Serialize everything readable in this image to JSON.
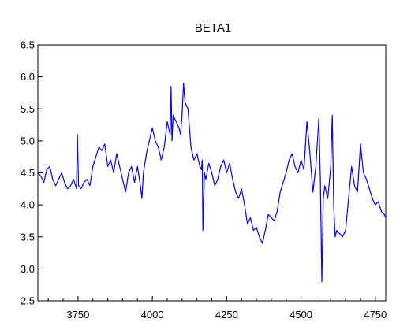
{
  "chart_data": {
    "type": "line",
    "title": "BETA1",
    "xlabel": "",
    "ylabel": "",
    "xlim": [
      3615,
      4785
    ],
    "ylim": [
      2.5,
      6.5
    ],
    "x_ticks": [
      3750,
      4000,
      4250,
      4500,
      4750
    ],
    "y_ticks": [
      2.5,
      3.0,
      3.5,
      4.0,
      4.5,
      5.0,
      5.5,
      6.0,
      6.5
    ],
    "y_tick_labels": [
      "2.5",
      "3.0",
      "3.5",
      "4.0",
      "4.5",
      "5.0",
      "5.5",
      "6.0",
      "6.5"
    ],
    "grid": false,
    "line_color": "#0000ff",
    "series": [
      {
        "x": [
          3615,
          3625,
          3635,
          3645,
          3655,
          3665,
          3675,
          3685,
          3695,
          3705,
          3715,
          3725,
          3735,
          3745,
          3748,
          3752,
          3760,
          3770,
          3780,
          3790,
          3800,
          3810,
          3820,
          3830,
          3840,
          3850,
          3860,
          3870,
          3880,
          3890,
          3900,
          3910,
          3920,
          3930,
          3940,
          3950,
          3960,
          3965,
          3970,
          3980,
          3990,
          4000,
          4010,
          4020,
          4030,
          4040,
          4050,
          4060,
          4063,
          4066,
          4070,
          4080,
          4090,
          4095,
          4100,
          4105,
          4110,
          4120,
          4130,
          4140,
          4150,
          4160,
          4165,
          4168,
          4170,
          4175,
          4180,
          4190,
          4200,
          4210,
          4220,
          4230,
          4240,
          4250,
          4260,
          4270,
          4280,
          4290,
          4300,
          4310,
          4320,
          4330,
          4340,
          4350,
          4360,
          4370,
          4380,
          4390,
          4400,
          4410,
          4420,
          4430,
          4440,
          4450,
          4460,
          4470,
          4480,
          4490,
          4500,
          4510,
          4520,
          4530,
          4540,
          4550,
          4560,
          4565,
          4570,
          4575,
          4580,
          4590,
          4600,
          4605,
          4610,
          4615,
          4620,
          4630,
          4640,
          4650,
          4660,
          4670,
          4680,
          4690,
          4700,
          4710,
          4720,
          4730,
          4740,
          4750,
          4760,
          4770,
          4780,
          4785
        ],
        "y": [
          4.5,
          4.45,
          4.35,
          4.55,
          4.6,
          4.4,
          4.3,
          4.4,
          4.5,
          4.35,
          4.25,
          4.3,
          4.4,
          4.25,
          5.1,
          4.3,
          4.25,
          4.35,
          4.4,
          4.3,
          4.6,
          4.75,
          4.9,
          4.85,
          4.95,
          4.6,
          4.7,
          4.5,
          4.8,
          4.6,
          4.4,
          4.2,
          4.5,
          4.6,
          4.35,
          4.6,
          4.3,
          4.1,
          4.5,
          4.8,
          5.0,
          5.2,
          5.0,
          4.9,
          4.7,
          4.9,
          5.3,
          5.1,
          5.85,
          5.0,
          5.4,
          5.3,
          5.2,
          5.1,
          5.4,
          5.9,
          5.6,
          5.5,
          4.9,
          4.7,
          4.8,
          4.6,
          4.55,
          4.7,
          3.6,
          4.5,
          4.4,
          4.65,
          4.5,
          4.3,
          4.4,
          4.6,
          4.7,
          4.5,
          4.65,
          4.4,
          4.2,
          4.1,
          4.25,
          4.0,
          3.7,
          3.8,
          3.6,
          3.65,
          3.5,
          3.4,
          3.6,
          3.85,
          3.8,
          3.75,
          3.9,
          4.2,
          4.35,
          4.5,
          4.7,
          4.8,
          4.6,
          4.5,
          4.7,
          4.55,
          5.3,
          4.8,
          4.2,
          4.6,
          5.35,
          4.4,
          2.8,
          4.1,
          4.3,
          4.1,
          4.6,
          5.4,
          4.0,
          3.5,
          3.6,
          3.55,
          3.5,
          3.6,
          4.1,
          4.6,
          4.3,
          4.2,
          4.95,
          4.5,
          4.4,
          4.25,
          4.1,
          4.0,
          4.05,
          3.9,
          3.85,
          3.8
        ]
      }
    ]
  }
}
